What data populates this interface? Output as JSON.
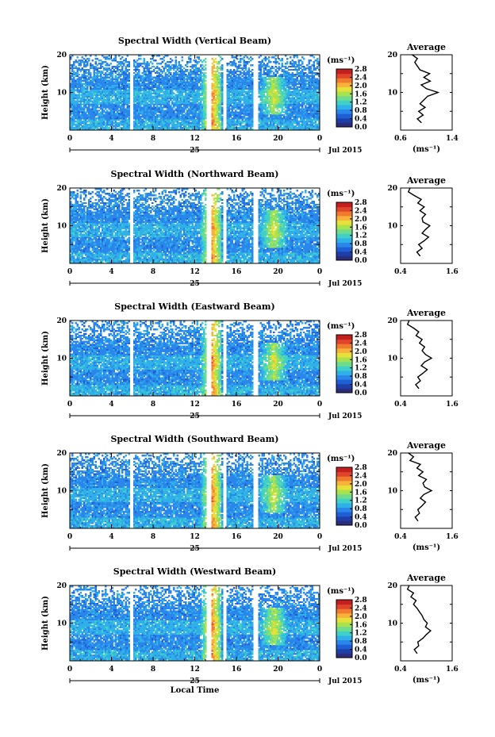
{
  "chart_data": [
    {
      "type": "heatmap",
      "title": "Spectral Width (Vertical Beam)",
      "xlabel": "",
      "ylabel": "Height (km)",
      "x_ticks": [
        "0",
        "4",
        "8",
        "12",
        "16",
        "20",
        "0"
      ],
      "y_ticks": [
        "10",
        "20"
      ],
      "xlim": [
        0,
        24
      ],
      "ylim": [
        0,
        20
      ],
      "date_day": "25",
      "date_label": "Jul 2015",
      "colorbar": {
        "unit": "(ms⁻¹)",
        "ticks": [
          "0.0",
          "0.4",
          "0.8",
          "1.2",
          "1.6",
          "2.0",
          "2.4",
          "2.8"
        ],
        "range": [
          0,
          2.8
        ]
      },
      "data_gaps": [
        [
          5.7,
          6.0
        ],
        [
          13.1,
          13.6
        ],
        [
          14.8,
          15.1
        ],
        [
          17.6,
          18.0
        ]
      ],
      "profile": {
        "title": "Average",
        "xlabel": "(ms⁻¹)",
        "x_ticks": [
          "0.6",
          "1.4"
        ],
        "xlim": [
          0.6,
          1.4
        ],
        "y_ticks": [
          "10",
          "20"
        ],
        "heights": [
          2,
          3,
          4,
          5,
          6,
          7,
          8,
          9,
          10,
          11,
          12,
          13,
          14,
          15,
          16,
          17,
          18,
          19,
          20
        ],
        "values": [
          0.92,
          0.86,
          0.95,
          0.88,
          0.98,
          0.9,
          0.96,
          1.02,
          1.18,
          1.0,
          0.92,
          1.06,
          0.96,
          1.05,
          0.9,
          0.86,
          0.82,
          0.86,
          0.78
        ]
      }
    },
    {
      "type": "heatmap",
      "title": "Spectral Width (Northward Beam)",
      "xlabel": "",
      "ylabel": "Height (km)",
      "x_ticks": [
        "0",
        "4",
        "8",
        "12",
        "16",
        "20",
        "0"
      ],
      "y_ticks": [
        "10",
        "20"
      ],
      "xlim": [
        0,
        24
      ],
      "ylim": [
        0,
        20
      ],
      "date_day": "25",
      "date_label": "Jul 2015",
      "colorbar": {
        "unit": "(ms⁻¹)",
        "ticks": [
          "0.0",
          "0.4",
          "0.8",
          "1.2",
          "1.6",
          "2.0",
          "2.4",
          "2.8"
        ],
        "range": [
          0,
          2.8
        ]
      },
      "data_gaps": [
        [
          5.7,
          6.0
        ],
        [
          13.1,
          13.6
        ],
        [
          14.8,
          15.1
        ],
        [
          17.6,
          18.0
        ]
      ],
      "profile": {
        "title": "Average",
        "xlabel": "",
        "x_ticks": [
          "0.4",
          "1.6"
        ],
        "xlim": [
          0.4,
          1.6
        ],
        "y_ticks": [
          "10",
          "20"
        ],
        "heights": [
          2,
          3,
          4,
          5,
          6,
          7,
          8,
          9,
          10,
          11,
          12,
          13,
          14,
          15,
          16,
          17,
          18,
          19,
          20
        ],
        "values": [
          0.85,
          0.78,
          0.9,
          0.82,
          0.95,
          1.05,
          0.9,
          0.98,
          1.08,
          0.92,
          0.9,
          0.98,
          0.85,
          0.95,
          0.8,
          0.88,
          0.72,
          0.58,
          0.62
        ]
      }
    },
    {
      "type": "heatmap",
      "title": "Spectral Width (Eastward Beam)",
      "xlabel": "",
      "ylabel": "Height (km)",
      "x_ticks": [
        "0",
        "4",
        "8",
        "12",
        "16",
        "20",
        "0"
      ],
      "y_ticks": [
        "10",
        "20"
      ],
      "xlim": [
        0,
        24
      ],
      "ylim": [
        0,
        20
      ],
      "date_day": "25",
      "date_label": "Jul 2015",
      "colorbar": {
        "unit": "(ms⁻¹)",
        "ticks": [
          "0.0",
          "0.4",
          "0.8",
          "1.2",
          "1.6",
          "2.0",
          "2.4",
          "2.8"
        ],
        "range": [
          0,
          2.8
        ]
      },
      "data_gaps": [
        [
          5.7,
          6.0
        ],
        [
          13.1,
          13.6
        ],
        [
          14.8,
          15.1
        ],
        [
          17.6,
          18.0
        ]
      ],
      "profile": {
        "title": "Average",
        "xlabel": "",
        "x_ticks": [
          "0.4",
          "1.6"
        ],
        "xlim": [
          0.4,
          1.6
        ],
        "y_ticks": [
          "10",
          "20"
        ],
        "heights": [
          2,
          3,
          4,
          5,
          6,
          7,
          8,
          9,
          10,
          11,
          12,
          13,
          14,
          15,
          16,
          17,
          18,
          19,
          20
        ],
        "values": [
          0.82,
          0.75,
          0.86,
          0.8,
          0.92,
          1.02,
          0.88,
          0.96,
          1.12,
          0.98,
          0.9,
          0.96,
          0.84,
          0.9,
          0.76,
          0.82,
          0.7,
          0.56,
          0.6
        ]
      }
    },
    {
      "type": "heatmap",
      "title": "Spectral Width (Southward Beam)",
      "xlabel": "",
      "ylabel": "Height (km)",
      "x_ticks": [
        "0",
        "4",
        "8",
        "12",
        "16",
        "20",
        "0"
      ],
      "y_ticks": [
        "10",
        "20"
      ],
      "xlim": [
        0,
        24
      ],
      "ylim": [
        0,
        20
      ],
      "date_day": "25",
      "date_label": "Jul 2015",
      "colorbar": {
        "unit": "(ms⁻¹)",
        "ticks": [
          "0.0",
          "0.4",
          "0.8",
          "1.2",
          "1.6",
          "2.0",
          "2.4",
          "2.8"
        ],
        "range": [
          0,
          2.8
        ]
      },
      "data_gaps": [
        [
          5.7,
          6.0
        ],
        [
          13.1,
          13.6
        ],
        [
          14.8,
          15.1
        ],
        [
          17.6,
          18.0
        ]
      ],
      "profile": {
        "title": "Average",
        "xlabel": "(ms⁻¹)",
        "x_ticks": [
          "0.4",
          "1.6"
        ],
        "xlim": [
          0.4,
          1.6
        ],
        "y_ticks": [
          "10",
          "20"
        ],
        "heights": [
          2,
          3,
          4,
          5,
          6,
          7,
          8,
          9,
          10,
          11,
          12,
          13,
          14,
          15,
          16,
          17,
          18,
          19,
          20
        ],
        "values": [
          0.8,
          0.74,
          0.84,
          0.8,
          0.9,
          0.98,
          0.86,
          0.94,
          1.12,
          0.96,
          0.92,
          1.0,
          0.82,
          0.92,
          0.78,
          0.86,
          0.62,
          0.7,
          0.58
        ]
      }
    },
    {
      "type": "heatmap",
      "title": "Spectral Width (Westward Beam)",
      "xlabel": "Local Time",
      "ylabel": "Height (km)",
      "x_ticks": [
        "0",
        "4",
        "8",
        "12",
        "16",
        "20",
        "0"
      ],
      "y_ticks": [
        "10",
        "20"
      ],
      "xlim": [
        0,
        24
      ],
      "ylim": [
        0,
        20
      ],
      "date_day": "25",
      "date_label": "Jul 2015",
      "colorbar": {
        "unit": "(ms⁻¹)",
        "ticks": [
          "0.0",
          "0.4",
          "0.8",
          "1.2",
          "1.6",
          "2.0",
          "2.4",
          "2.8"
        ],
        "range": [
          0,
          2.8
        ]
      },
      "data_gaps": [
        [
          5.7,
          6.0
        ],
        [
          13.1,
          13.6
        ],
        [
          14.8,
          15.1
        ],
        [
          17.6,
          18.0
        ]
      ],
      "profile": {
        "title": "Average",
        "xlabel": "(ms⁻¹)",
        "x_ticks": [
          "0.4",
          "1.6"
        ],
        "xlim": [
          0.4,
          1.6
        ],
        "y_ticks": [
          "10",
          "20"
        ],
        "heights": [
          2,
          3,
          4,
          5,
          6,
          7,
          8,
          9,
          10,
          11,
          12,
          13,
          14,
          15,
          16,
          17,
          18,
          19,
          20
        ],
        "values": [
          0.78,
          0.72,
          0.82,
          0.8,
          0.92,
          1.0,
          1.1,
          0.98,
          1.02,
          0.94,
          0.9,
          0.84,
          0.78,
          0.7,
          0.76,
          0.64,
          0.7,
          0.56,
          0.6
        ]
      }
    }
  ],
  "colors": {
    "colormap": [
      "#2b2d7a",
      "#1f3fa8",
      "#1f5fd6",
      "#2a86ea",
      "#2fb0e8",
      "#3fd0c8",
      "#6edc8c",
      "#a8e24e",
      "#e6e03a",
      "#f6b23a",
      "#f07a2e",
      "#e0442a",
      "#c41f1f"
    ],
    "axis": "#000000",
    "gap": "#ffffff"
  }
}
